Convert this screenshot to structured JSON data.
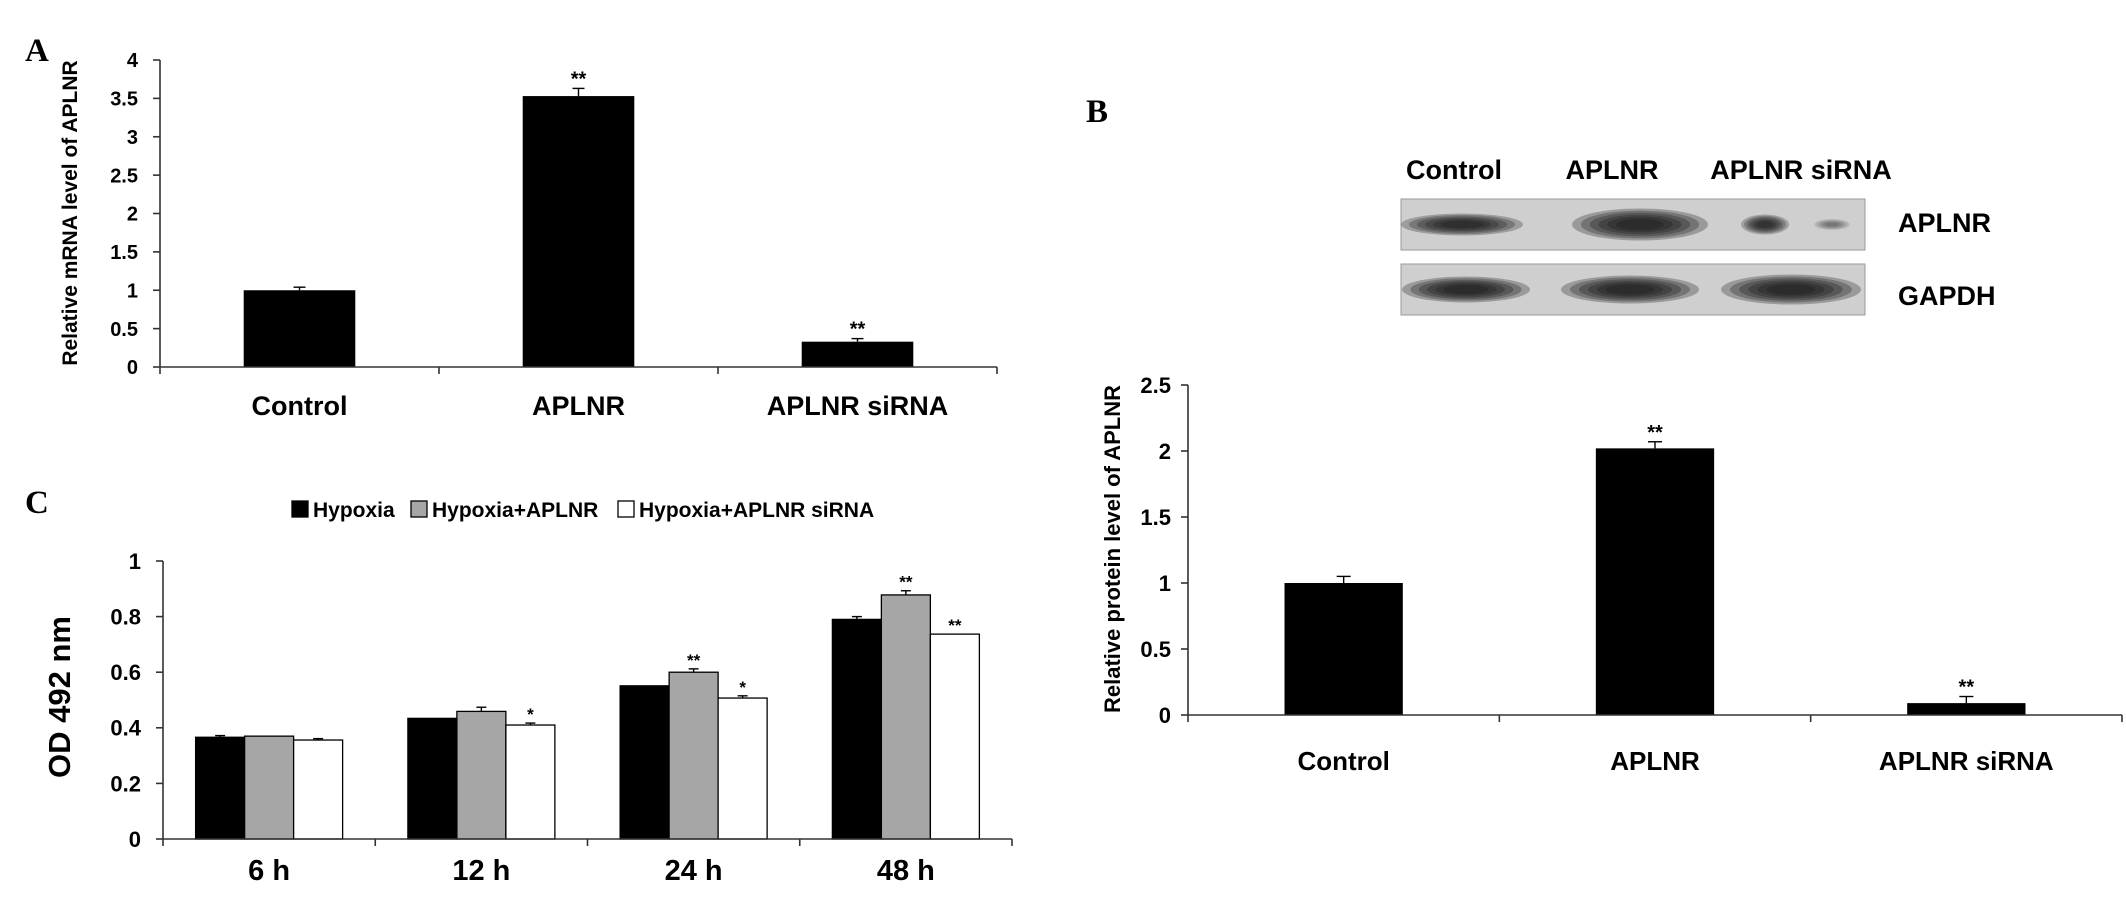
{
  "panel_labels": {
    "a": "A",
    "b": "B",
    "c": "C"
  },
  "blot": {
    "lanes": [
      "Control",
      "APLNR",
      "APLNR siRNA"
    ],
    "bands": [
      "APLNR",
      "GAPDH"
    ]
  },
  "chart_data": [
    {
      "type": "bar",
      "categories": [
        "Control",
        "APLNR",
        "APLNR siRNA"
      ],
      "values": [
        1.0,
        3.53,
        0.33
      ],
      "errors": [
        0.04,
        0.1,
        0.04
      ],
      "significance": [
        "",
        "**",
        "**"
      ],
      "ylabel": "Relative mRNA level of APLNR",
      "ylim": [
        0,
        4
      ],
      "yticks": [
        0,
        0.5,
        1,
        1.5,
        2,
        2.5,
        3,
        3.5,
        4
      ],
      "bar_color": "#000000",
      "grid": false
    },
    {
      "type": "bar",
      "categories": [
        "Control",
        "APLNR",
        "APLNR siRNA"
      ],
      "values": [
        1.0,
        2.02,
        0.09
      ],
      "errors": [
        0.05,
        0.05,
        0.05
      ],
      "significance": [
        "",
        "**",
        "**"
      ],
      "ylabel": "Relative protein level of APLNR",
      "ylim": [
        0,
        2.5
      ],
      "yticks": [
        0,
        0.5,
        1,
        1.5,
        2,
        2.5
      ],
      "bar_color": "#000000",
      "grid": false
    },
    {
      "type": "bar",
      "categories": [
        "6 h",
        "12 h",
        "24 h",
        "48 h"
      ],
      "series": [
        {
          "name": "Hypoxia",
          "color": "#000000",
          "values": [
            0.366,
            0.434,
            0.551,
            0.79
          ],
          "errors": [
            0.006,
            0.0,
            0.0,
            0.01
          ],
          "significance": [
            "",
            "",
            "",
            ""
          ]
        },
        {
          "name": "Hypoxia+APLNR",
          "color": "#a6a6a6",
          "values": [
            0.37,
            0.459,
            0.6,
            0.878
          ],
          "errors": [
            0.0,
            0.015,
            0.012,
            0.015
          ],
          "significance": [
            "",
            "",
            "**",
            "**"
          ]
        },
        {
          "name": "Hypoxia+APLNR siRNA",
          "color": "#ffffff",
          "values": [
            0.356,
            0.41,
            0.507,
            0.737
          ],
          "errors": [
            0.005,
            0.007,
            0.008,
            0.0
          ],
          "significance": [
            "",
            "*",
            "*",
            "**"
          ]
        }
      ],
      "ylabel": "OD 492 nm",
      "ylim": [
        0,
        1
      ],
      "yticks": [
        0,
        0.2,
        0.4,
        0.6,
        0.8,
        1
      ],
      "legend": "top",
      "grid": false
    }
  ]
}
